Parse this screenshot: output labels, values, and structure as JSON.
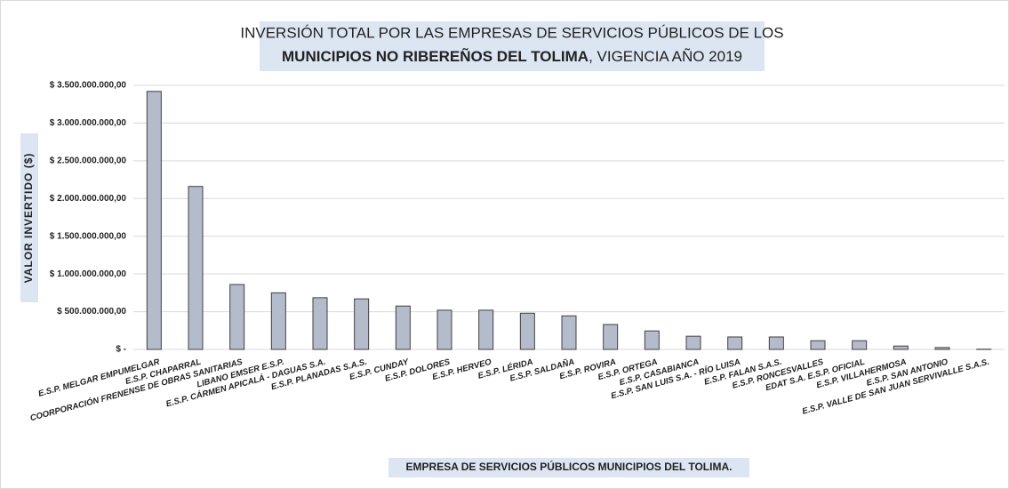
{
  "chart_data": {
    "type": "bar",
    "title": [
      "INVERSIÓN TOTAL POR LAS EMPRESAS DE SERVICIOS PÚBLICOS DE LOS",
      "MUNICIPIOS NO RIBEREÑOS DEL TOLIMA",
      ", VIGENCIA AÑO 2019"
    ],
    "x_label": "EMPRESA DE SERVICIOS PÚBLICOS MUNICIPIOS DEL TOLIMA.",
    "y_label": "VALOR INVERTIDO ($)",
    "categories": [
      "E.S.P. MELGAR EMPUMELGAR",
      "E.S.P. CHAPARRAL",
      "COORPORACIÓN FRENENSE DE OBRAS SANITARIAS",
      "LIBANO EMSER E.S.P.",
      "E.S.P. CÁRMEN APICALÁ - DAGUAS S.A.",
      "E.S.P. PLANADAS S.A.S.",
      "E.S.P. CUNDAY",
      "E.S.P. DOLORES",
      "E.S.P. HERVEO",
      "E.S.P. LÉRIDA",
      "E.S.P. SALDAÑA",
      "E.S.P. ROVIRA",
      "E.S.P. ORTEGA",
      "E.S.P. CASABIANCA",
      "E.S.P. SAN LUIS S.A. - RÍO LUISA",
      "E.S.P. FALAN S.A.S.",
      "E.S.P. RONCESVALLES",
      "EDAT S.A. E.S.P. OFICIAL",
      "E.S.P. VILLAHERMOSA",
      "E.S.P. SAN ANTONIO",
      "E.S.P. VALLE DE SAN JUAN SERVIVALLE S.A.S."
    ],
    "values": [
      3420000000,
      2160000000,
      860000000,
      750000000,
      685000000,
      670000000,
      575000000,
      520000000,
      520000000,
      480000000,
      445000000,
      330000000,
      245000000,
      175000000,
      165000000,
      165000000,
      115000000,
      115000000,
      45000000,
      25000000,
      3000000
    ],
    "color": "#b4bccc",
    "ylim": [
      0,
      3500000000
    ],
    "yticks": [
      {
        "value": 0,
        "label": "$ -"
      },
      {
        "value": 500000000,
        "label": "$ 500.000.000,00"
      },
      {
        "value": 1000000000,
        "label": "$ 1.000.000.000,00"
      },
      {
        "value": 1500000000,
        "label": "$ 1.500.000.000,00"
      },
      {
        "value": 2000000000,
        "label": "$ 2.000.000.000,00"
      },
      {
        "value": 2500000000,
        "label": "$ 2.500.000.000,00"
      },
      {
        "value": 3000000000,
        "label": "$ 3.000.000.000,00"
      },
      {
        "value": 3500000000,
        "label": "$ 3.500.000.000,00"
      }
    ],
    "grid": true
  }
}
